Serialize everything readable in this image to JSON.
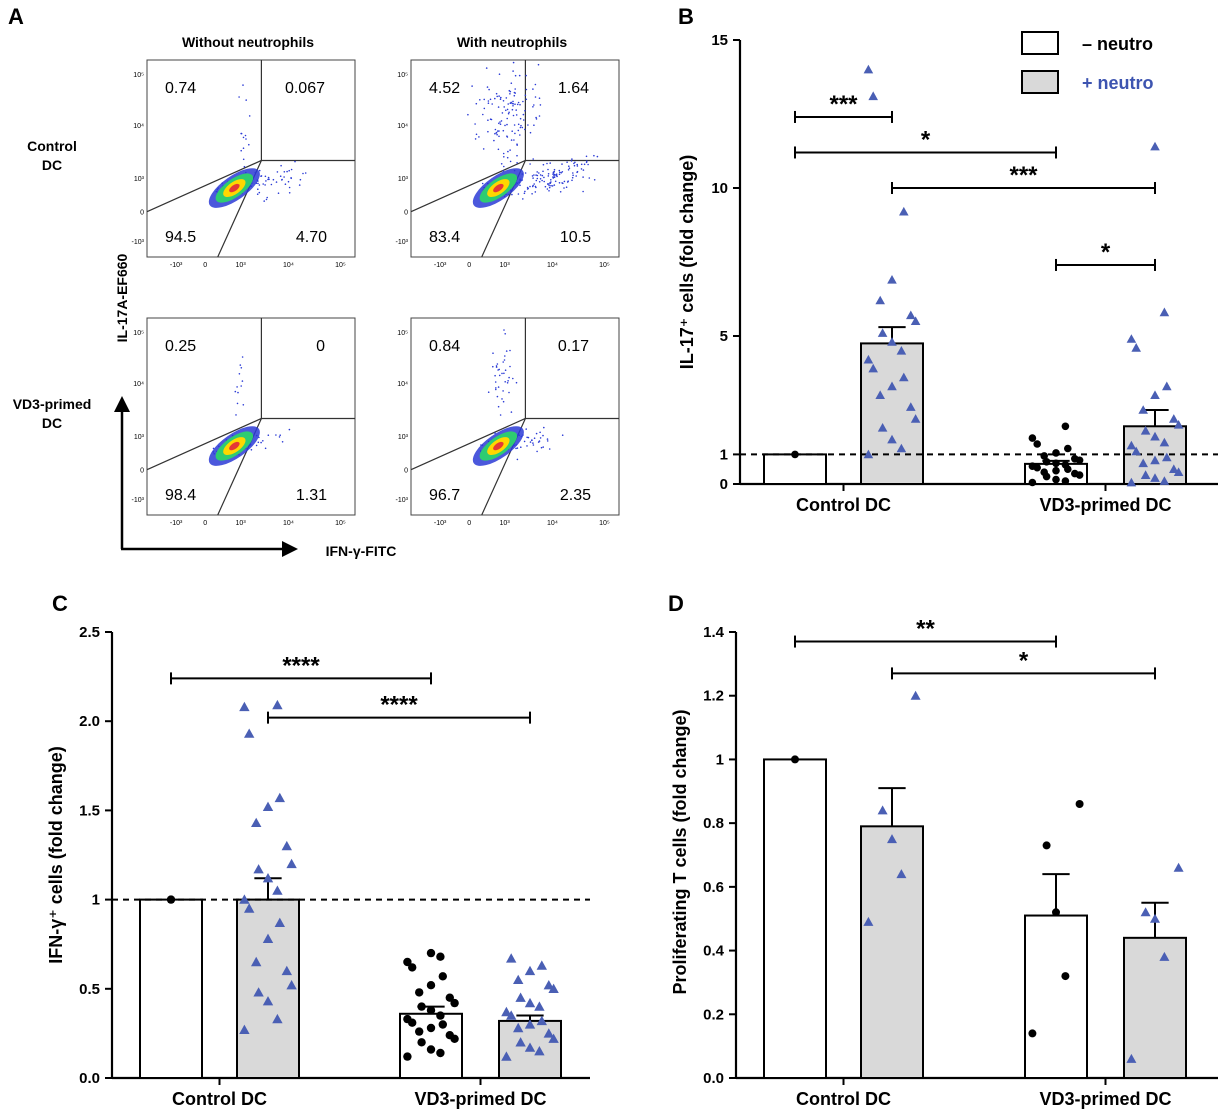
{
  "colors": {
    "open_bar": "#ffffff",
    "filled_bar": "#d9d9d9",
    "control_markers": "#000000",
    "neutro_markers": "#4a5fb4",
    "plus_neutro_text": "#3d54b0",
    "density_low": "#2b3bd6",
    "density_mid": "#2ecc71",
    "density_high": "#ffd700",
    "density_peak": "#e53935"
  },
  "panelA": {
    "label": "A",
    "col_headers": [
      "Without  neutrophils",
      "With  neutrophils"
    ],
    "row_headers": [
      [
        "Control",
        "DC"
      ],
      [
        "VD3-primed",
        "DC"
      ]
    ],
    "y_axis_label": "IL-17A-EF660",
    "x_axis_label": "IFN-γ-FITC",
    "tick_labels": {
      "x": [
        "-10³",
        "0",
        "10³",
        "10⁴",
        "10⁵"
      ],
      "y": [
        "10⁵",
        "10⁴",
        "10³",
        "0",
        "-10³"
      ]
    },
    "plots": [
      {
        "name": "control-without",
        "quadrants": {
          "ul": "0.74",
          "ur": "0.067",
          "ll": "94.5",
          "lr": "4.70"
        }
      },
      {
        "name": "control-with",
        "quadrants": {
          "ul": "4.52",
          "ur": "1.64",
          "ll": "83.4",
          "lr": "10.5"
        }
      },
      {
        "name": "vd3-without",
        "quadrants": {
          "ul": "0.25",
          "ur": "0",
          "ll": "98.4",
          "lr": "1.31"
        }
      },
      {
        "name": "vd3-with",
        "quadrants": {
          "ul": "0.84",
          "ur": "0.17",
          "ll": "96.7",
          "lr": "2.35"
        }
      }
    ]
  },
  "legend": {
    "minus_label": "– neutro",
    "plus_label": "+ neutro"
  },
  "chart_data": [
    {
      "panel": "B",
      "type": "bar",
      "title": "",
      "ylabel": "IL-17⁺ cells (fold change)",
      "xlabel": "",
      "ylim": [
        0,
        15
      ],
      "yticks": [
        0,
        1,
        5,
        10,
        15
      ],
      "reference_line": 1,
      "categories": [
        "Control DC",
        "VD3-primed DC"
      ],
      "series": [
        {
          "name": "– neutro",
          "values": [
            1.0,
            0.68
          ],
          "sem": [
            0,
            0.1
          ],
          "points": [
            [
              1.0
            ],
            [
              0.05,
              0.1,
              0.15,
              0.25,
              0.3,
              0.35,
              0.4,
              0.45,
              0.5,
              0.55,
              0.6,
              0.65,
              0.7,
              0.75,
              0.8,
              0.85,
              0.95,
              1.05,
              1.2,
              1.35,
              1.55,
              1.95
            ]
          ]
        },
        {
          "name": "+ neutro",
          "values": [
            4.75,
            1.95
          ],
          "sem": [
            0.55,
            0.55
          ],
          "points": [
            [
              1.0,
              1.2,
              1.5,
              1.9,
              2.2,
              2.6,
              3.0,
              3.3,
              3.6,
              3.9,
              4.2,
              4.5,
              4.8,
              5.1,
              5.5,
              5.7,
              6.2,
              6.9,
              9.2,
              13.1,
              14.0
            ],
            [
              0.05,
              0.1,
              0.2,
              0.3,
              0.4,
              0.5,
              0.7,
              0.8,
              0.9,
              1.1,
              1.3,
              1.4,
              1.6,
              1.8,
              2.0,
              2.2,
              2.5,
              3.0,
              3.3,
              4.6,
              4.9,
              5.8,
              11.4
            ]
          ]
        }
      ],
      "significance": [
        {
          "label": "***",
          "from": [
            0,
            "– neutro"
          ],
          "to": [
            0,
            "+ neutro"
          ],
          "y": 12.4
        },
        {
          "label": "*",
          "from": [
            0,
            "– neutro"
          ],
          "to": [
            1,
            "– neutro"
          ],
          "y": 11.2
        },
        {
          "label": "***",
          "from": [
            0,
            "+ neutro"
          ],
          "to": [
            1,
            "+ neutro"
          ],
          "y": 10.0
        },
        {
          "label": "*",
          "from": [
            1,
            "– neutro"
          ],
          "to": [
            1,
            "+ neutro"
          ],
          "y": 7.4
        }
      ]
    },
    {
      "panel": "C",
      "type": "bar",
      "title": "",
      "ylabel": "IFN-γ⁺ cells (fold change)",
      "xlabel": "",
      "ylim": [
        0,
        2.5
      ],
      "yticks": [
        0.0,
        0.5,
        1.0,
        1.5,
        2.0,
        2.5
      ],
      "ytick_labels": [
        "0.0",
        "0.5",
        "1",
        "1.5",
        "2.0",
        "2.5"
      ],
      "reference_line": 1,
      "categories": [
        "Control DC",
        "VD3-primed DC"
      ],
      "series": [
        {
          "name": "– neutro",
          "values": [
            1.0,
            0.36
          ],
          "sem": [
            0,
            0.04
          ],
          "points": [
            [
              1.0
            ],
            [
              0.12,
              0.14,
              0.16,
              0.2,
              0.22,
              0.24,
              0.26,
              0.28,
              0.3,
              0.31,
              0.33,
              0.35,
              0.38,
              0.4,
              0.42,
              0.45,
              0.48,
              0.52,
              0.57,
              0.62,
              0.65,
              0.68,
              0.7
            ]
          ]
        },
        {
          "name": "+ neutro",
          "values": [
            1.0,
            0.32
          ],
          "sem": [
            0.12,
            0.03
          ],
          "points": [
            [
              0.27,
              0.33,
              0.43,
              0.48,
              0.52,
              0.6,
              0.65,
              0.78,
              0.87,
              0.95,
              1.0,
              1.05,
              1.12,
              1.17,
              1.2,
              1.3,
              1.43,
              1.52,
              1.57,
              1.93,
              2.08,
              2.09
            ],
            [
              0.12,
              0.15,
              0.17,
              0.2,
              0.22,
              0.25,
              0.28,
              0.3,
              0.32,
              0.35,
              0.37,
              0.4,
              0.42,
              0.45,
              0.5,
              0.52,
              0.55,
              0.6,
              0.63,
              0.67
            ]
          ]
        }
      ],
      "significance": [
        {
          "label": "****",
          "from": [
            0,
            "– neutro"
          ],
          "to": [
            1,
            "– neutro"
          ],
          "y": 2.24
        },
        {
          "label": "****",
          "from": [
            0,
            "+ neutro"
          ],
          "to": [
            1,
            "+ neutro"
          ],
          "y": 2.02
        }
      ]
    },
    {
      "panel": "D",
      "type": "bar",
      "title": "",
      "ylabel": "Proliferating T cells (fold change)",
      "xlabel": "",
      "ylim": [
        0,
        1.4
      ],
      "yticks": [
        0.0,
        0.2,
        0.4,
        0.6,
        0.8,
        1.0,
        1.2,
        1.4
      ],
      "ytick_labels": [
        "0.0",
        "0.2",
        "0.4",
        "0.6",
        "0.8",
        "1",
        "1.2",
        "1.4"
      ],
      "categories": [
        "Control DC",
        "VD3-primed DC"
      ],
      "series": [
        {
          "name": "– neutro",
          "values": [
            1.0,
            0.51
          ],
          "sem": [
            0,
            0.13
          ],
          "points": [
            [
              1.0
            ],
            [
              0.14,
              0.32,
              0.52,
              0.73,
              0.86
            ]
          ]
        },
        {
          "name": "+ neutro",
          "values": [
            0.79,
            0.44
          ],
          "sem": [
            0.12,
            0.11
          ],
          "points": [
            [
              0.49,
              0.64,
              0.75,
              0.84,
              1.2
            ],
            [
              0.06,
              0.38,
              0.5,
              0.52,
              0.66
            ]
          ]
        }
      ],
      "significance": [
        {
          "label": "**",
          "from": [
            0,
            "– neutro"
          ],
          "to": [
            1,
            "– neutro"
          ],
          "y": 1.37
        },
        {
          "label": "*",
          "from": [
            0,
            "+ neutro"
          ],
          "to": [
            1,
            "+ neutro"
          ],
          "y": 1.27
        }
      ]
    }
  ]
}
